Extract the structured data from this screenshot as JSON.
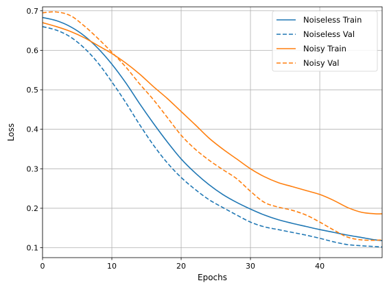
{
  "chart_data": {
    "type": "line",
    "title": "",
    "xlabel": "Epochs",
    "ylabel": "Loss",
    "xlim": [
      0,
      49
    ],
    "ylim": [
      0.075,
      0.71
    ],
    "xticks": [
      0,
      10,
      20,
      30,
      40
    ],
    "yticks": [
      0.1,
      0.2,
      0.3,
      0.4,
      0.5,
      0.6,
      0.7
    ],
    "grid": true,
    "legend_position": "top-right",
    "series": [
      {
        "name": "Noiseless Train",
        "color": "#1f77b4",
        "style": "solid",
        "x": [
          0,
          2,
          4,
          6,
          8,
          10,
          12,
          14,
          16,
          18,
          20,
          22,
          24,
          26,
          28,
          30,
          32,
          34,
          36,
          38,
          40,
          42,
          44,
          46,
          48,
          49
        ],
        "y": [
          0.683,
          0.675,
          0.66,
          0.637,
          0.605,
          0.565,
          0.518,
          0.465,
          0.415,
          0.368,
          0.325,
          0.29,
          0.26,
          0.235,
          0.215,
          0.198,
          0.183,
          0.171,
          0.162,
          0.154,
          0.146,
          0.139,
          0.132,
          0.126,
          0.12,
          0.118
        ]
      },
      {
        "name": "Noiseless Val",
        "color": "#1f77b4",
        "style": "dashed",
        "x": [
          0,
          2,
          4,
          6,
          8,
          10,
          12,
          14,
          16,
          18,
          20,
          22,
          24,
          26,
          28,
          30,
          32,
          34,
          36,
          38,
          40,
          42,
          44,
          46,
          48,
          49
        ],
        "y": [
          0.66,
          0.651,
          0.634,
          0.606,
          0.568,
          0.52,
          0.468,
          0.412,
          0.36,
          0.315,
          0.278,
          0.248,
          0.222,
          0.202,
          0.183,
          0.165,
          0.153,
          0.146,
          0.139,
          0.132,
          0.124,
          0.115,
          0.108,
          0.105,
          0.103,
          0.102
        ]
      },
      {
        "name": "Noisy Train",
        "color": "#ff7f0e",
        "style": "solid",
        "x": [
          0,
          2,
          4,
          6,
          8,
          10,
          12,
          14,
          16,
          18,
          20,
          22,
          24,
          26,
          28,
          30,
          32,
          34,
          36,
          38,
          40,
          42,
          44,
          46,
          48,
          49
        ],
        "y": [
          0.67,
          0.66,
          0.648,
          0.632,
          0.612,
          0.592,
          0.568,
          0.54,
          0.508,
          0.478,
          0.445,
          0.412,
          0.378,
          0.35,
          0.325,
          0.3,
          0.28,
          0.265,
          0.255,
          0.245,
          0.235,
          0.22,
          0.202,
          0.19,
          0.186,
          0.186
        ]
      },
      {
        "name": "Noisy Val",
        "color": "#ff7f0e",
        "style": "dashed",
        "x": [
          0,
          2,
          4,
          6,
          8,
          10,
          12,
          14,
          16,
          18,
          20,
          22,
          24,
          26,
          28,
          30,
          32,
          34,
          36,
          38,
          40,
          42,
          44,
          46,
          48,
          49
        ],
        "y": [
          0.695,
          0.697,
          0.688,
          0.662,
          0.63,
          0.595,
          0.558,
          0.515,
          0.475,
          0.43,
          0.385,
          0.35,
          0.322,
          0.298,
          0.275,
          0.243,
          0.215,
          0.203,
          0.195,
          0.183,
          0.165,
          0.145,
          0.127,
          0.12,
          0.119,
          0.12
        ]
      }
    ]
  }
}
